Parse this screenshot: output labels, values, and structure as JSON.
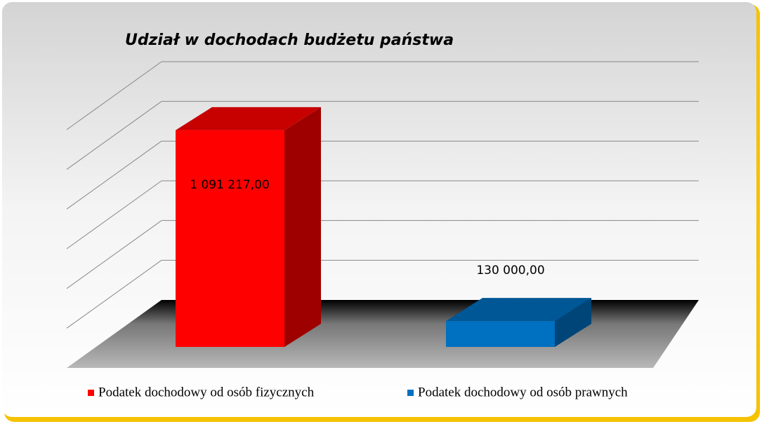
{
  "chart_data": {
    "type": "bar3d",
    "title": "Udział w dochodach  budżetu państwa",
    "series": [
      {
        "name": "Podatek dochodowy od osób fizycznych",
        "color": "#ff0000",
        "values": [
          1091217
        ],
        "value_labels": [
          "1 091 217,00"
        ]
      },
      {
        "name": "Podatek dochodowy od osób prawnych",
        "color": "#0070c0",
        "values": [
          130000
        ],
        "value_labels": [
          "130 000,00"
        ]
      }
    ],
    "ylim": [
      0,
      1200000
    ],
    "yticks": [
      0,
      200000,
      400000,
      600000,
      800000,
      1000000,
      1200000
    ],
    "grid": true
  }
}
